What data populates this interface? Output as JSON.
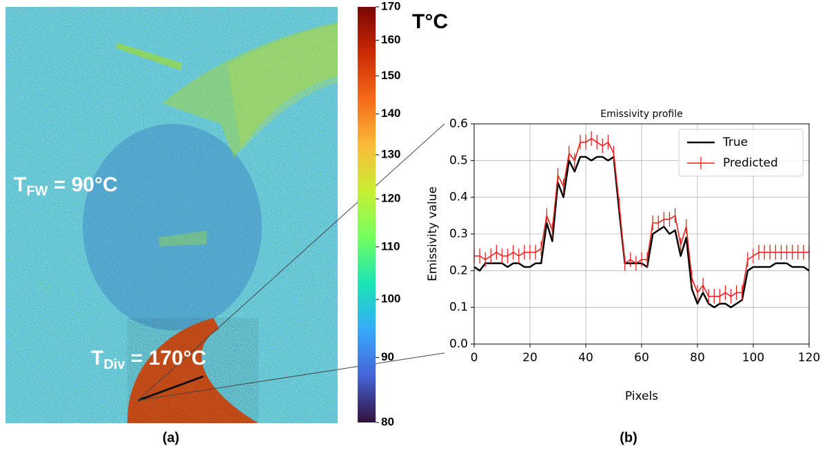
{
  "panel_a": {
    "label": "(a)",
    "annotations": [
      {
        "main": "T",
        "sub": "FW",
        "rest": " = 90°C"
      },
      {
        "main": "T",
        "sub": "Div",
        "rest": " = 170°C"
      }
    ],
    "colorbar": {
      "title": "T°C",
      "lim": [
        80,
        170
      ],
      "ticks": [
        80,
        90,
        100,
        110,
        120,
        130,
        140,
        150,
        160,
        170
      ],
      "scale": "log",
      "colormap": [
        "#30123b",
        "#4662d7",
        "#36aaf9",
        "#1ae4b6",
        "#72fe5e",
        "#c7ef34",
        "#fabb3a",
        "#f66b19",
        "#cb2a04",
        "#7a0403"
      ]
    }
  },
  "chart_data": {
    "type": "line",
    "title": "Emissivity profile",
    "x_label": "Pixels",
    "y_label": "Emissivity value",
    "panel_label": "(b)",
    "x": [
      0,
      2,
      4,
      6,
      8,
      10,
      12,
      14,
      16,
      18,
      20,
      22,
      24,
      26,
      28,
      30,
      32,
      34,
      36,
      38,
      40,
      42,
      44,
      46,
      48,
      50,
      52,
      54,
      56,
      58,
      60,
      62,
      64,
      66,
      68,
      70,
      72,
      74,
      76,
      78,
      80,
      82,
      84,
      86,
      88,
      90,
      92,
      94,
      96,
      98,
      100,
      102,
      104,
      106,
      108,
      110,
      112,
      114,
      116,
      118,
      120
    ],
    "xlim": [
      0,
      120
    ],
    "xticks": [
      0,
      20,
      40,
      60,
      80,
      100,
      120
    ],
    "ylim": [
      0,
      0.6
    ],
    "yticks": [
      {
        "value": 0,
        "label": "0.0"
      },
      0.1,
      0.2,
      0.3,
      0.4,
      0.5,
      0.6
    ],
    "grid": true,
    "legend": "upper right",
    "series": [
      {
        "name": "True",
        "color": "#000000",
        "values": [
          0.21,
          0.2,
          0.22,
          0.22,
          0.22,
          0.22,
          0.21,
          0.22,
          0.22,
          0.21,
          0.21,
          0.22,
          0.22,
          0.33,
          0.28,
          0.44,
          0.4,
          0.5,
          0.47,
          0.51,
          0.51,
          0.5,
          0.51,
          0.51,
          0.5,
          0.51,
          0.36,
          0.22,
          0.22,
          0.22,
          0.22,
          0.21,
          0.3,
          0.31,
          0.32,
          0.3,
          0.31,
          0.24,
          0.29,
          0.15,
          0.11,
          0.14,
          0.11,
          0.1,
          0.11,
          0.11,
          0.1,
          0.11,
          0.12,
          0.2,
          0.21,
          0.21,
          0.21,
          0.21,
          0.22,
          0.22,
          0.22,
          0.21,
          0.21,
          0.21,
          0.2
        ]
      },
      {
        "name": "Predicted",
        "color": "#e8201c",
        "error": 0.02,
        "values": [
          0.24,
          0.24,
          0.23,
          0.24,
          0.25,
          0.24,
          0.24,
          0.25,
          0.24,
          0.25,
          0.25,
          0.25,
          0.26,
          0.35,
          0.31,
          0.46,
          0.43,
          0.52,
          0.5,
          0.55,
          0.55,
          0.56,
          0.55,
          0.54,
          0.55,
          0.52,
          0.38,
          0.22,
          0.23,
          0.22,
          0.23,
          0.23,
          0.33,
          0.33,
          0.34,
          0.34,
          0.35,
          0.27,
          0.32,
          0.18,
          0.14,
          0.16,
          0.13,
          0.13,
          0.13,
          0.14,
          0.13,
          0.14,
          0.14,
          0.23,
          0.24,
          0.25,
          0.25,
          0.25,
          0.25,
          0.25,
          0.25,
          0.25,
          0.25,
          0.25,
          0.25
        ]
      }
    ]
  }
}
